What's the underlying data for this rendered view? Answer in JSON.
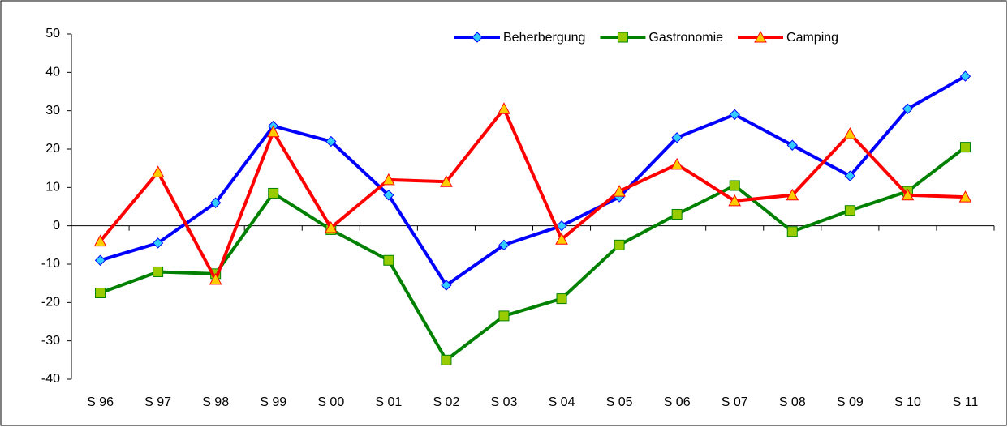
{
  "chart_data": {
    "type": "line",
    "categories": [
      "S 96",
      "S 97",
      "S 98",
      "S 99",
      "S 00",
      "S 01",
      "S 02",
      "S 03",
      "S 04",
      "S 05",
      "S 06",
      "S 07",
      "S 08",
      "S 09",
      "S 10",
      "S 11"
    ],
    "series": [
      {
        "name": "Beherbergung",
        "color": "#0000ff",
        "marker": "diamond",
        "marker_color": "#33ccff",
        "values": [
          -9,
          -4.5,
          6,
          26,
          22,
          8,
          -15.5,
          -5,
          0,
          7.5,
          23,
          29,
          21,
          13,
          30.5,
          39
        ]
      },
      {
        "name": "Gastronomie",
        "color": "#008000",
        "marker": "square",
        "marker_color": "#99cc00",
        "values": [
          -17.5,
          -12,
          -12.5,
          8.5,
          -1,
          -9,
          -35,
          -23.5,
          -19,
          -5,
          3,
          10.5,
          -1.5,
          4,
          9,
          20.5
        ]
      },
      {
        "name": "Camping",
        "color": "#ff0000",
        "marker": "triangle",
        "marker_color": "#ffcc00",
        "values": [
          -4,
          14,
          -14,
          24.5,
          -0.5,
          12,
          11.5,
          30.5,
          -3.5,
          9,
          16,
          6.5,
          8,
          24,
          8,
          7.5
        ]
      }
    ],
    "ylim": [
      -40,
      50
    ],
    "yticks": [
      -40,
      -30,
      -20,
      -10,
      0,
      10,
      20,
      30,
      40,
      50
    ],
    "grid": false,
    "legend": "top"
  }
}
